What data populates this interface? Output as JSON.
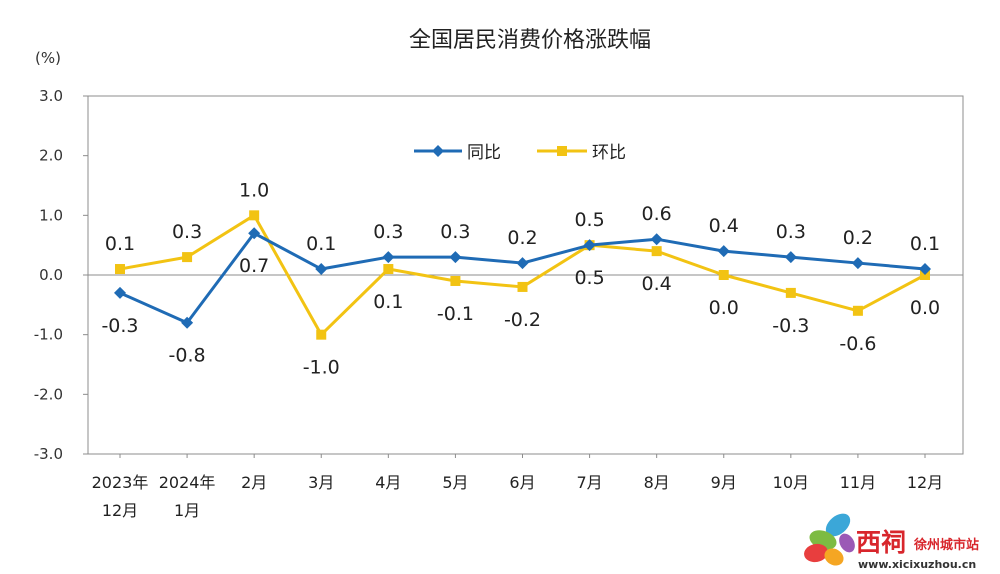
{
  "chart_data": {
    "type": "line",
    "title": "全国居民消费价格涨跌幅",
    "unit_label": "(%)",
    "ylim": [
      -3.0,
      3.0
    ],
    "yticks": [
      "3.0",
      "2.0",
      "1.0",
      "0.0",
      "-1.0",
      "-2.0",
      "-3.0"
    ],
    "ytick_values": [
      3,
      2,
      1,
      0,
      -1,
      -2,
      -3
    ],
    "categories": [
      [
        "2023年",
        "12月"
      ],
      [
        "2024年",
        "1月"
      ],
      [
        "2月",
        ""
      ],
      [
        "3月",
        ""
      ],
      [
        "4月",
        ""
      ],
      [
        "5月",
        ""
      ],
      [
        "6月",
        ""
      ],
      [
        "7月",
        ""
      ],
      [
        "8月",
        ""
      ],
      [
        "9月",
        ""
      ],
      [
        "10月",
        ""
      ],
      [
        "11月",
        ""
      ],
      [
        "12月",
        ""
      ]
    ],
    "legend_position": "top-center",
    "series": [
      {
        "name": "同比",
        "color": "#1F6BB5",
        "marker": "diamond",
        "values": [
          -0.3,
          -0.8,
          0.7,
          0.1,
          0.3,
          0.3,
          0.2,
          0.5,
          0.6,
          0.4,
          0.3,
          0.2,
          0.1
        ],
        "labels": [
          "-0.3",
          "-0.8",
          "0.7",
          "0.1",
          "0.3",
          "0.3",
          "0.2",
          "0.5",
          "0.6",
          "0.4",
          "0.3",
          "0.2",
          "0.1"
        ],
        "label_pos": [
          "below",
          "below",
          "below",
          "above",
          "above",
          "above",
          "above",
          "above",
          "above",
          "above",
          "above",
          "above",
          "above"
        ]
      },
      {
        "name": "环比",
        "color": "#F2C313",
        "marker": "square",
        "values": [
          0.1,
          0.3,
          1.0,
          -1.0,
          0.1,
          -0.1,
          -0.2,
          0.5,
          0.4,
          0.0,
          -0.3,
          -0.6,
          0.0
        ],
        "labels": [
          "0.1",
          "0.3",
          "1.0",
          "-1.0",
          "0.1",
          "-0.1",
          "-0.2",
          "0.5",
          "0.4",
          "0.0",
          "-0.3",
          "-0.6",
          "0.0"
        ],
        "label_pos": [
          "above",
          "above",
          "above",
          "below",
          "below",
          "below",
          "below",
          "below",
          "below",
          "below",
          "below",
          "below",
          "below"
        ]
      }
    ]
  },
  "watermark": {
    "brand_text": "西祠",
    "site_text": "徐州城市站",
    "url_text": "www.xicixuzhou.cn"
  }
}
